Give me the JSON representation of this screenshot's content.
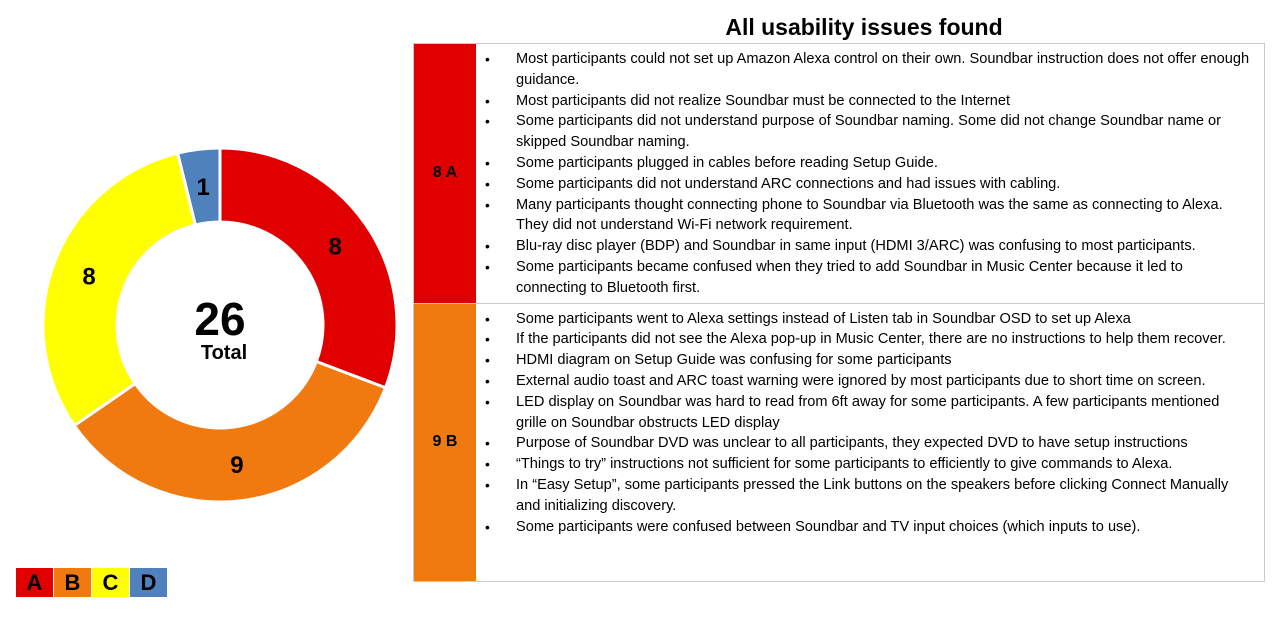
{
  "title": "All usability issues found",
  "chart_data": {
    "type": "pie",
    "variant": "donut",
    "categories": [
      "A",
      "B",
      "C",
      "D"
    ],
    "values": [
      8,
      9,
      8,
      1
    ],
    "colors": [
      "#e00000",
      "#f07a10",
      "#ffff00",
      "#4f81bd"
    ],
    "center_value": "26",
    "center_label": "Total",
    "legend": [
      "A",
      "B",
      "C",
      "D"
    ],
    "legend_position": "bottom-left"
  },
  "groups": [
    {
      "label": "8 A",
      "color": "#e00000",
      "issues": [
        "Most participants could not set up Amazon Alexa control on their own. Soundbar instruction does not offer enough guidance.",
        "Most participants did not realize Soundbar must be connected to the Internet",
        "Some participants did not understand purpose of Soundbar naming. Some did not change Soundbar name or skipped Soundbar naming.",
        "Some participants plugged in cables before reading Setup Guide.",
        "Some participants did not understand ARC connections and had issues with cabling.",
        "Many participants thought connecting phone to Soundbar via Bluetooth was the same as connecting to Alexa. They did not understand Wi-Fi network requirement.",
        "Blu-ray disc player (BDP) and Soundbar in same input (HDMI 3/ARC) was confusing to most participants.",
        "Some participants became confused when they tried to add Soundbar in Music Center because it led to connecting to Bluetooth first."
      ]
    },
    {
      "label": "9 B",
      "color": "#f07a10",
      "issues": [
        "Some participants went to Alexa settings instead of Listen tab in Soundbar OSD to set up Alexa",
        "If the participants did not see the Alexa pop-up in Music Center, there are no instructions to help them recover.",
        "HDMI diagram on Setup Guide was confusing for some participants",
        "External audio toast and ARC toast warning were ignored by most participants due to short time on screen.",
        "LED display on Soundbar was hard to read from 6ft away for some participants. A few participants mentioned grille on Soundbar obstructs LED display",
        "Purpose of Soundbar DVD was unclear to all participants, they expected DVD to have setup instructions",
        "“Things to try” instructions not sufficient for some participants to efficiently to give commands to Alexa.",
        "In “Easy Setup”, some participants pressed the Link buttons on the speakers before clicking Connect Manually and initializing discovery.",
        "Some participants were confused between Soundbar and TV input choices (which inputs to use)."
      ]
    }
  ]
}
